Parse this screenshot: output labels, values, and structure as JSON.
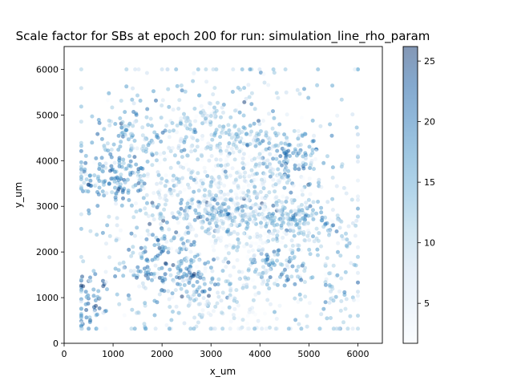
{
  "chart_data": {
    "type": "scatter",
    "title": "Scale factor for SBs at epoch 200 for run: simulation_line_rho_param",
    "xlabel": "x_um",
    "ylabel": "y_um",
    "xlim": [
      0,
      6500
    ],
    "ylim": [
      0,
      6500
    ],
    "xticks": [
      0,
      1000,
      2000,
      3000,
      4000,
      5000,
      6000
    ],
    "yticks": [
      0,
      1000,
      2000,
      3000,
      4000,
      5000,
      6000
    ],
    "grid": false,
    "colorbar": {
      "colormap": "Blues",
      "range": [
        1.7,
        26.2
      ],
      "ticks": [
        5,
        10,
        15,
        20,
        25
      ]
    },
    "clusters": [
      {
        "x": 1000,
        "y": 3600,
        "spread": [
          420,
          320
        ],
        "value_mean": 18,
        "count": 110
      },
      {
        "x": 1300,
        "y": 4500,
        "spread": [
          420,
          350
        ],
        "value_mean": 16,
        "count": 70
      },
      {
        "x": 2000,
        "y": 1800,
        "spread": [
          420,
          420
        ],
        "value_mean": 18,
        "count": 110
      },
      {
        "x": 2700,
        "y": 1400,
        "spread": [
          300,
          250
        ],
        "value_mean": 19,
        "count": 50
      },
      {
        "x": 500,
        "y": 1000,
        "spread": [
          180,
          350
        ],
        "value_mean": 20,
        "count": 50
      },
      {
        "x": 3000,
        "y": 2850,
        "spread": [
          500,
          200
        ],
        "value_mean": 18,
        "count": 90
      },
      {
        "x": 4700,
        "y": 2700,
        "spread": [
          550,
          220
        ],
        "value_mean": 15,
        "count": 120
      },
      {
        "x": 4600,
        "y": 4100,
        "spread": [
          420,
          350
        ],
        "value_mean": 17,
        "count": 100
      },
      {
        "x": 4400,
        "y": 1700,
        "spread": [
          380,
          260
        ],
        "value_mean": 17,
        "count": 70
      },
      {
        "x": 2500,
        "y": 4900,
        "spread": [
          600,
          450
        ],
        "value_mean": 13,
        "count": 80
      },
      {
        "x": 3600,
        "y": 4600,
        "spread": [
          500,
          250
        ],
        "value_mean": 14,
        "count": 50
      },
      {
        "x": 3500,
        "y": 3200,
        "spread": [
          900,
          700
        ],
        "value_mean": 5,
        "count": 420
      },
      {
        "x": 3200,
        "y": 900,
        "spread": [
          1500,
          450
        ],
        "value_mean": 8,
        "count": 160
      },
      {
        "x": 3200,
        "y": 3200,
        "spread": [
          1500,
          1500
        ],
        "value_mean": 10,
        "count": 600
      },
      {
        "x": 5500,
        "y": 1500,
        "spread": [
          300,
          700
        ],
        "value_mean": 12,
        "count": 60
      }
    ]
  }
}
